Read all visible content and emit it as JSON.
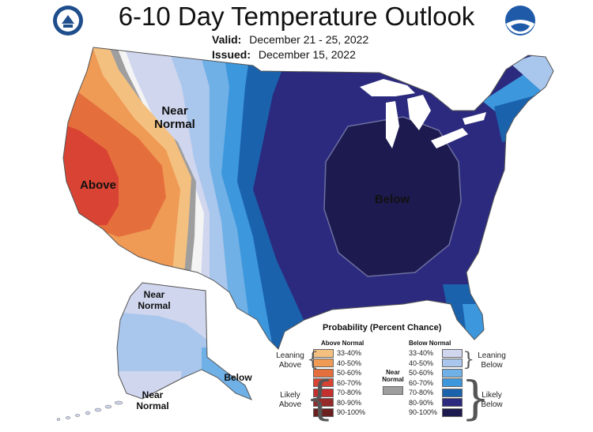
{
  "header": {
    "title": "6-10 Day Temperature Outlook",
    "valid_label": "Valid:",
    "valid_value": "December 21 - 25, 2022",
    "issued_label": "Issued:",
    "issued_value": "December 15, 2022"
  },
  "logos": {
    "left": "doc-seal-icon",
    "right": "noaa-logo-icon"
  },
  "map_labels": {
    "near_normal_west": "Near Normal",
    "above": "Above",
    "below": "Below",
    "alaska_near_normal_north": "Near Normal",
    "alaska_near_normal_south": "Near Normal",
    "alaska_below": "Below"
  },
  "legend": {
    "title": "Probability (Percent Chance)",
    "above_header": "Above Normal",
    "below_header": "Below Normal",
    "near_label": "Near Normal",
    "leaning_above": "Leaning Above",
    "likely_above": "Likely Above",
    "leaning_below": "Leaning Below",
    "likely_below": "Likely Below",
    "above_bins": [
      {
        "label": "33-40%",
        "color": "#f4c07f"
      },
      {
        "label": "40-50%",
        "color": "#ef9a55"
      },
      {
        "label": "50-60%",
        "color": "#e56f3c"
      },
      {
        "label": "60-70%",
        "color": "#d94333"
      },
      {
        "label": "70-80%",
        "color": "#c5302e"
      },
      {
        "label": "80-90%",
        "color": "#962a2a"
      },
      {
        "label": "90-100%",
        "color": "#6b1f1f"
      }
    ],
    "below_bins": [
      {
        "label": "33-40%",
        "color": "#cfd6ee"
      },
      {
        "label": "40-50%",
        "color": "#a9c6ec"
      },
      {
        "label": "50-60%",
        "color": "#6fb0e6"
      },
      {
        "label": "60-70%",
        "color": "#3d97dc"
      },
      {
        "label": "70-80%",
        "color": "#1b62ad"
      },
      {
        "label": "80-90%",
        "color": "#2b2a7e"
      },
      {
        "label": "90-100%",
        "color": "#1d1a4f"
      }
    ],
    "near_color": "#9e9e9e"
  }
}
